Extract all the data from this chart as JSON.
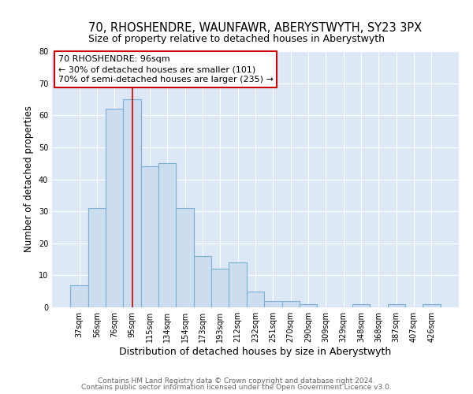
{
  "title": "70, RHOSHENDRE, WAUNFAWR, ABERYSTWYTH, SY23 3PX",
  "subtitle": "Size of property relative to detached houses in Aberystwyth",
  "xlabel": "Distribution of detached houses by size in Aberystwyth",
  "ylabel": "Number of detached properties",
  "bar_labels": [
    "37sqm",
    "56sqm",
    "76sqm",
    "95sqm",
    "115sqm",
    "134sqm",
    "154sqm",
    "173sqm",
    "193sqm",
    "212sqm",
    "232sqm",
    "251sqm",
    "270sqm",
    "290sqm",
    "309sqm",
    "329sqm",
    "348sqm",
    "368sqm",
    "387sqm",
    "407sqm",
    "426sqm"
  ],
  "bar_values": [
    7,
    31,
    62,
    65,
    44,
    45,
    31,
    16,
    12,
    14,
    5,
    2,
    2,
    1,
    0,
    0,
    1,
    0,
    1,
    0,
    1
  ],
  "bar_color": "#ccddf0",
  "bar_edge_color": "#7bafd4",
  "bar_edge_width": 0.8,
  "vline_x_index": 3,
  "vline_color": "#cc0000",
  "vline_linewidth": 1.2,
  "ylim": [
    0,
    80
  ],
  "yticks": [
    0,
    10,
    20,
    30,
    40,
    50,
    60,
    70,
    80
  ],
  "annotation_line1": "70 RHOSHENDRE: 96sqm",
  "annotation_line2": "← 30% of detached houses are smaller (101)",
  "annotation_line3": "70% of semi-detached houses are larger (235) →",
  "footer_line1": "Contains HM Land Registry data © Crown copyright and database right 2024.",
  "footer_line2": "Contains public sector information licensed under the Open Government Licence v3.0.",
  "fig_bg_color": "#ffffff",
  "plot_bg_color": "#dce8f5",
  "grid_color": "#ffffff",
  "title_fontsize": 10.5,
  "subtitle_fontsize": 9,
  "xlabel_fontsize": 9,
  "ylabel_fontsize": 8.5,
  "tick_fontsize": 7,
  "annotation_fontsize": 8,
  "footer_fontsize": 6.5,
  "annotation_box_edgecolor": "#cc0000",
  "annotation_box_facecolor": "#ffffff"
}
